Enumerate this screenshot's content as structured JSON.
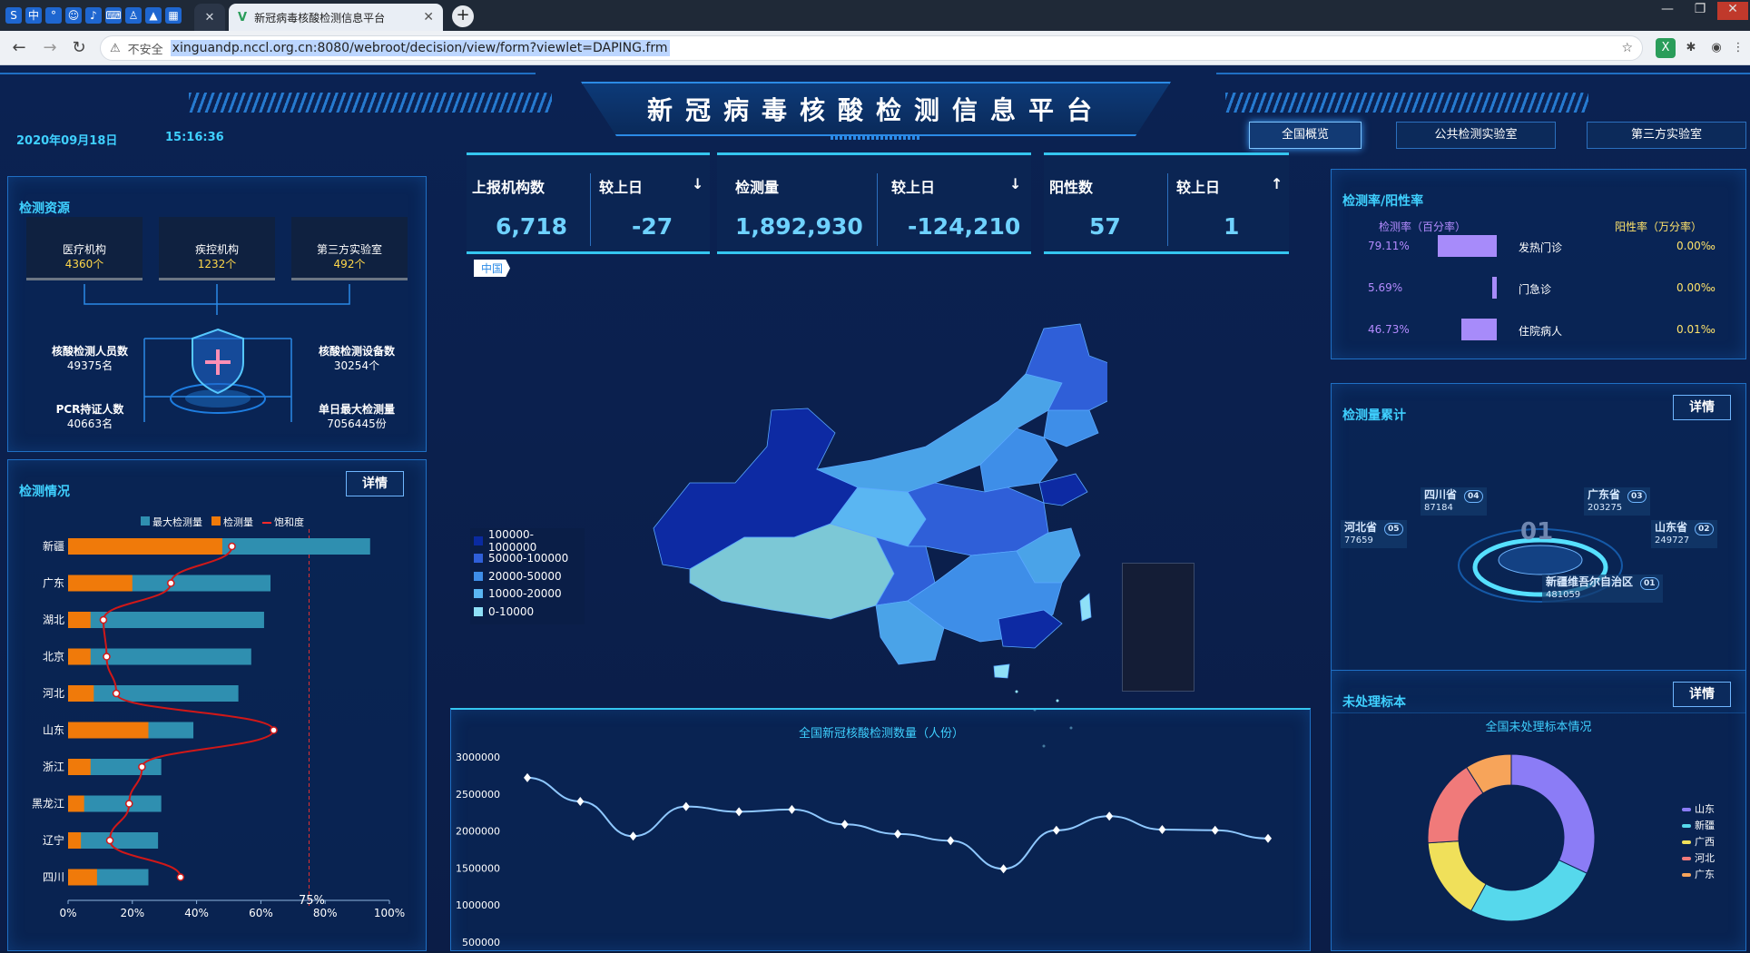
{
  "browser": {
    "tab_title": "新冠病毒核酸检测信息平台",
    "security": "不安全",
    "url": "xinguandp.nccl.org.cn:8080/webroot/decision/view/form?viewlet=DAPING.frm"
  },
  "header": {
    "title": "新冠病毒核酸检测信息平台",
    "date": "2020年09月18日",
    "time": "15:16:36",
    "buttons": [
      "全国概览",
      "公共检测实验室",
      "第三方实验室"
    ]
  },
  "resources": {
    "title": "检测资源",
    "boxes": [
      {
        "label": "医疗机构",
        "value": "4360个"
      },
      {
        "label": "疾控机构",
        "value": "1232个"
      },
      {
        "label": "第三方实验室",
        "value": "492个"
      }
    ],
    "items": [
      {
        "label": "核酸检测人员数",
        "value": "49375名"
      },
      {
        "label": "核酸检测设备数",
        "value": "30254个"
      },
      {
        "label": "PCR持证人数",
        "value": "40663名"
      },
      {
        "label": "单日最大检测量",
        "value": "7056445份"
      }
    ]
  },
  "status": {
    "title": "检测情况",
    "detail": "详情",
    "legend": [
      "最大检测量",
      "检测量",
      "饱和度"
    ],
    "mark_label": "75%"
  },
  "chart_data": [
    {
      "type": "bar",
      "categories": [
        "新疆",
        "广东",
        "湖北",
        "北京",
        "河北",
        "山东",
        "浙江",
        "黑龙江",
        "辽宁",
        "四川"
      ],
      "series": [
        {
          "name": "最大检测量",
          "values": [
            94,
            63,
            61,
            57,
            53,
            39,
            29,
            29,
            28,
            25
          ]
        },
        {
          "name": "检测量",
          "values": [
            48,
            20,
            7,
            7,
            8,
            25,
            7,
            5,
            4,
            9
          ]
        },
        {
          "name": "饱和度",
          "values": [
            51,
            32,
            11,
            12,
            15,
            64,
            23,
            19,
            13,
            35
          ]
        }
      ],
      "x_ticks": [
        "0%",
        "20%",
        "40%",
        "60%",
        "80%",
        "100%"
      ],
      "xlim": [
        0,
        100
      ],
      "markline": 75
    },
    {
      "type": "line",
      "title": "全国新冠核酸检测数量（人份）",
      "y_ticks": [
        "3000000",
        "2500000",
        "2000000",
        "1500000",
        "1000000",
        "500000"
      ],
      "ylim": [
        500000,
        3000000
      ],
      "values": [
        2720000,
        2400000,
        1930000,
        2330000,
        2260000,
        2290000,
        2090000,
        1960000,
        1870000,
        1490000,
        2010000,
        2200000,
        2020000,
        2010000,
        1900000
      ]
    },
    {
      "type": "pie",
      "title": "全国未处理标本情况",
      "categories": [
        "山东",
        "新疆",
        "广西",
        "河北",
        "广东"
      ],
      "values": [
        32,
        26,
        16,
        17,
        9
      ],
      "colors": [
        "#8b7cf6",
        "#56d8ec",
        "#f0e05a",
        "#f07a7a",
        "#f7a45a"
      ]
    }
  ],
  "kpis": [
    {
      "label": "上报机构数",
      "value": "6,718",
      "cmp_label": "较上日",
      "cmp_value": "-27",
      "trend": "↓"
    },
    {
      "label": "检测量",
      "value": "1,892,930",
      "cmp_label": "较上日",
      "cmp_value": "-124,210",
      "trend": "↓"
    },
    {
      "label": "阳性数",
      "value": "57",
      "cmp_label": "较上日",
      "cmp_value": "1",
      "trend": "↑"
    }
  ],
  "map": {
    "region_tag": "中国",
    "legend": [
      {
        "label": "100000-1000000",
        "color": "#0a2aa0"
      },
      {
        "label": "50000-100000",
        "color": "#2f5fd8"
      },
      {
        "label": "20000-50000",
        "color": "#3e8ee8"
      },
      {
        "label": "10000-20000",
        "color": "#5ab6f2"
      },
      {
        "label": "0-10000",
        "color": "#8fe0f7"
      }
    ]
  },
  "rates": {
    "title": "检测率/阳性率",
    "col_left": "检测率（百分率）",
    "col_right": "阳性率（万分率）",
    "rows": [
      {
        "name": "发热门诊",
        "test_rate": "79.11%",
        "test_rate_value": 79.11,
        "pos_rate": "0.00‰"
      },
      {
        "name": "门急诊",
        "test_rate": "5.69%",
        "test_rate_value": 5.69,
        "pos_rate": "0.00‰"
      },
      {
        "name": "住院病人",
        "test_rate": "46.73%",
        "test_rate_value": 46.73,
        "pos_rate": "0.01‰"
      }
    ]
  },
  "cumulative": {
    "title": "检测量累计",
    "detail": "详情",
    "center_rank": "01",
    "nodes": [
      {
        "name": "四川省",
        "value": "87184",
        "rank": "04"
      },
      {
        "name": "广东省",
        "value": "203275",
        "rank": "03"
      },
      {
        "name": "河北省",
        "value": "77659",
        "rank": "05"
      },
      {
        "name": "山东省",
        "value": "249727",
        "rank": "02"
      },
      {
        "name": "新疆维吾尔自治区",
        "value": "481059",
        "rank": "01"
      }
    ]
  },
  "pending": {
    "title": "未处理标本",
    "detail": "详情"
  }
}
